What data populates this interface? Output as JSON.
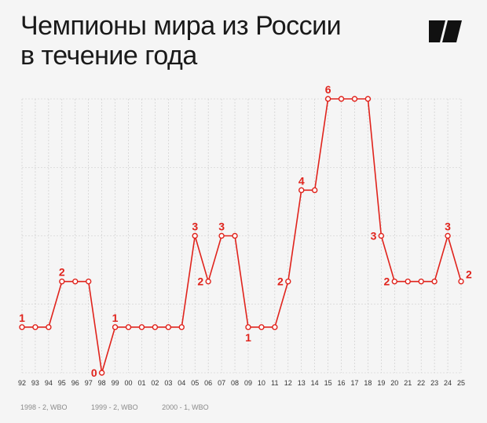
{
  "header": {
    "title_line1": "Чемпионы мира из России",
    "title_line2": "в течение года",
    "logo_icon": "publisher-logo-icon"
  },
  "colors": {
    "line": "#e0231c",
    "point_fill": "#ffffff",
    "grid": "#c8c8c8",
    "background": "#f5f5f5"
  },
  "chart_data": {
    "type": "line",
    "title": "Чемпионы мира из России в течение года",
    "categories": [
      "92",
      "93",
      "94",
      "95",
      "96",
      "97",
      "98",
      "99",
      "00",
      "01",
      "02",
      "03",
      "04",
      "05",
      "06",
      "07",
      "08",
      "09",
      "10",
      "11",
      "12",
      "13",
      "14",
      "15",
      "16",
      "17",
      "18",
      "19",
      "20",
      "21",
      "22",
      "23",
      "24",
      "25"
    ],
    "series": [
      {
        "name": "",
        "values": [
          1,
          1,
          1,
          2,
          2,
          2,
          0,
          1,
          1,
          1,
          1,
          1,
          1,
          3,
          2,
          3,
          3,
          1,
          1,
          1,
          2,
          4,
          4,
          6,
          6,
          6,
          6,
          3,
          2,
          2,
          2,
          2,
          3,
          2
        ]
      }
    ],
    "ylim": [
      0,
      6
    ],
    "grid": true,
    "labeled_indices": [
      0,
      3,
      6,
      7,
      13,
      14,
      15,
      17,
      20,
      21,
      23,
      27,
      28,
      32,
      33
    ],
    "label_positions": {
      "0": "above",
      "3": "above",
      "6": "left",
      "7": "above",
      "13": "above",
      "14": "left",
      "15": "above",
      "17": "below",
      "20": "left",
      "21": "above",
      "23": "above",
      "27": "left",
      "28": "left",
      "32": "above",
      "33": "right"
    }
  },
  "notes": [
    "1998 - 2, WBO",
    "1999 - 2, WBO",
    "2000 - 1, WBO"
  ]
}
